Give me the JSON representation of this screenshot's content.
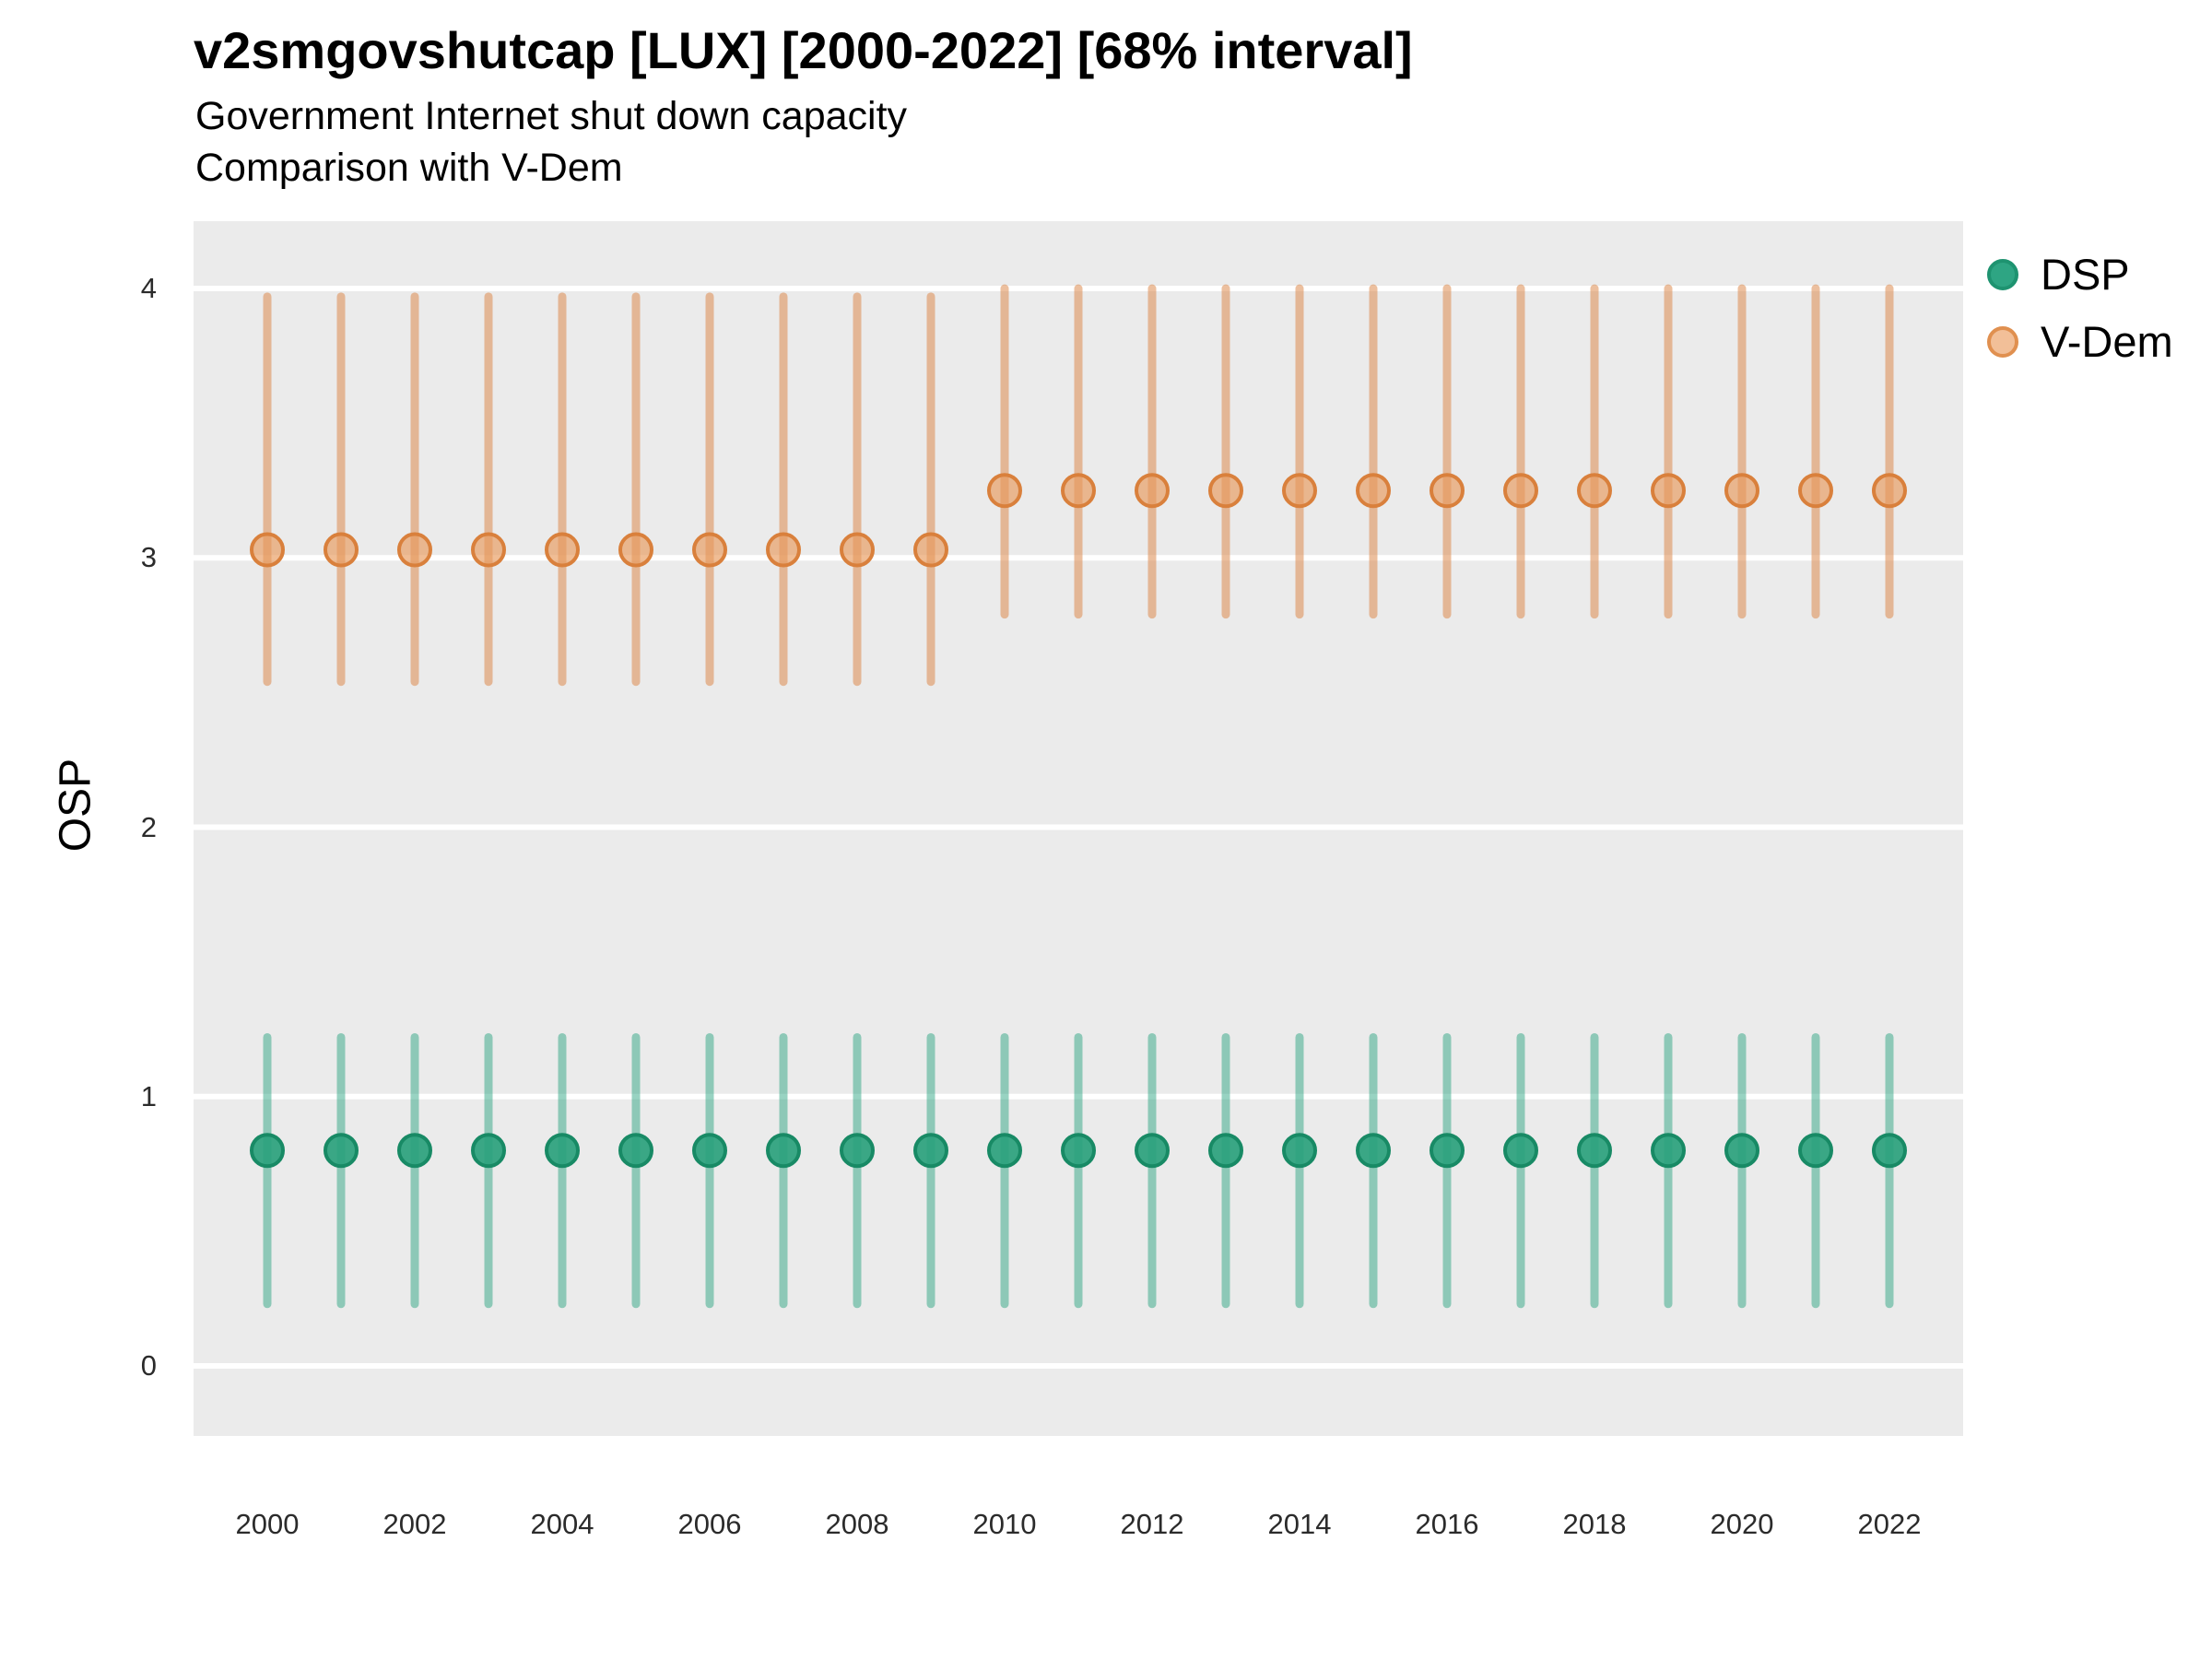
{
  "chart_data": {
    "type": "pointrange",
    "title": "v2smgovshutcap [LUX] [2000-2022] [68% interval]",
    "subtitle": "Government Internet shut down capacity",
    "subtitle2": "Comparison with V-Dem",
    "ylabel": "OSP",
    "xlabel": "",
    "interval": "68%",
    "x": [
      2000,
      2001,
      2002,
      2003,
      2004,
      2005,
      2006,
      2007,
      2008,
      2009,
      2010,
      2011,
      2012,
      2013,
      2014,
      2015,
      2016,
      2017,
      2018,
      2019,
      2020,
      2021,
      2022
    ],
    "xtick_labels": [
      "2000",
      "2002",
      "2004",
      "2006",
      "2008",
      "2010",
      "2012",
      "2014",
      "2016",
      "2018",
      "2020",
      "2022"
    ],
    "yticks": [
      0,
      1,
      2,
      3,
      4
    ],
    "ylim": [
      -0.26,
      4.25
    ],
    "grid": "horizontal white major gridlines on grey panel",
    "legend_position": "right-top outside panel",
    "panel_bg": "#EBEBEB",
    "gridline_color": "#FFFFFF",
    "series": [
      {
        "name": "DSP",
        "est": [
          0.8,
          0.8,
          0.8,
          0.8,
          0.8,
          0.8,
          0.8,
          0.8,
          0.8,
          0.8,
          0.8,
          0.8,
          0.8,
          0.8,
          0.8,
          0.8,
          0.8,
          0.8,
          0.8,
          0.8,
          0.8,
          0.8,
          0.8
        ],
        "low": [
          0.23,
          0.23,
          0.23,
          0.23,
          0.23,
          0.23,
          0.23,
          0.23,
          0.23,
          0.23,
          0.23,
          0.23,
          0.23,
          0.23,
          0.23,
          0.23,
          0.23,
          0.23,
          0.23,
          0.23,
          0.23,
          0.23,
          0.23
        ],
        "high": [
          1.22,
          1.22,
          1.22,
          1.22,
          1.22,
          1.22,
          1.22,
          1.22,
          1.22,
          1.22,
          1.22,
          1.22,
          1.22,
          1.22,
          1.22,
          1.22,
          1.22,
          1.22,
          1.22,
          1.22,
          1.22,
          1.22,
          1.22
        ],
        "bar_color": "#1B9E77",
        "bar_opacity": 0.45,
        "point_fill": "#2AA17C",
        "point_fill_opacity": 0.92,
        "point_stroke": "#188A65",
        "legend_fill": "#2EA583",
        "legend_stroke": "#1E9370"
      },
      {
        "name": "V-Dem",
        "est": [
          3.03,
          3.03,
          3.03,
          3.03,
          3.03,
          3.03,
          3.03,
          3.03,
          3.03,
          3.03,
          3.25,
          3.25,
          3.25,
          3.25,
          3.25,
          3.25,
          3.25,
          3.25,
          3.25,
          3.25,
          3.25,
          3.25,
          3.25
        ],
        "low": [
          2.54,
          2.54,
          2.54,
          2.54,
          2.54,
          2.54,
          2.54,
          2.54,
          2.54,
          2.54,
          2.79,
          2.79,
          2.79,
          2.79,
          2.79,
          2.79,
          2.79,
          2.79,
          2.79,
          2.79,
          2.79,
          2.79,
          2.79
        ],
        "high": [
          3.97,
          3.97,
          3.97,
          3.97,
          3.97,
          3.97,
          3.97,
          3.97,
          3.97,
          3.97,
          4.0,
          4.0,
          4.0,
          4.0,
          4.0,
          4.0,
          4.0,
          4.0,
          4.0,
          4.0,
          4.0,
          4.0,
          4.0
        ],
        "bar_color": "#DD8A4E",
        "bar_opacity": 0.55,
        "point_fill": "#E89A5C",
        "point_fill_opacity": 0.65,
        "point_stroke": "#D9803C",
        "legend_fill": "#F2BF98",
        "legend_stroke": "#E09050"
      }
    ]
  }
}
